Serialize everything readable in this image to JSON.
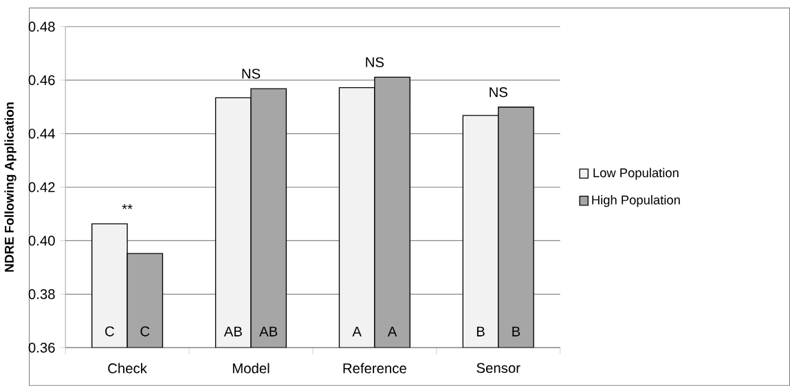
{
  "chart_data": {
    "type": "bar",
    "ylabel": "NDRE Following Application",
    "categories": [
      "Check",
      "Model",
      "Reference",
      "Sensor"
    ],
    "series": [
      {
        "name": "Low Population",
        "color": "#f2f2f2",
        "values": [
          0.4063,
          0.4534,
          0.4572,
          0.4468
        ],
        "value_labels": [
          "C",
          "AB",
          "A",
          "B"
        ]
      },
      {
        "name": "High Population",
        "color": "#a6a6a6",
        "values": [
          0.3952,
          0.4568,
          0.4611,
          0.4499
        ],
        "value_labels": [
          "C",
          "AB",
          "A",
          "B"
        ]
      }
    ],
    "annotations": [
      "**",
      "NS",
      "NS",
      "NS"
    ],
    "ylim": [
      0.36,
      0.48
    ],
    "yticks": [
      0.36,
      0.38,
      {
        "value": 0.4,
        "label": "0.40"
      },
      0.42,
      0.44,
      0.46,
      0.48
    ],
    "grid": "y",
    "legend": "right"
  }
}
